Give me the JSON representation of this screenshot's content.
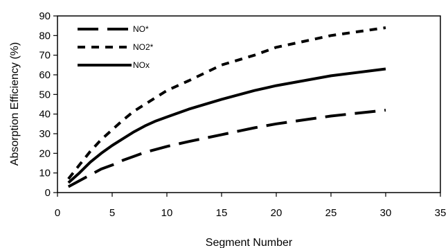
{
  "chart_data": {
    "type": "line",
    "title": "",
    "xlabel": "Segment Number",
    "ylabel": "Absorption Efficiency (%)",
    "xlim": [
      0,
      35
    ],
    "ylim": [
      0,
      90
    ],
    "xticks": [
      "0",
      "5",
      "10",
      "15",
      "20",
      "25",
      "30",
      "35"
    ],
    "yticks": [
      "0",
      "10",
      "20",
      "30",
      "40",
      "50",
      "60",
      "70",
      "80",
      "90"
    ],
    "grid": false,
    "legend_position": "top-left",
    "series": [
      {
        "name": "NO*",
        "style": "long-dash",
        "x": [
          1,
          2,
          3,
          4,
          5,
          6,
          7,
          8,
          9,
          10,
          12,
          15,
          18,
          20,
          25,
          30
        ],
        "y": [
          3,
          6,
          9,
          12,
          14,
          16.5,
          18.5,
          20.5,
          22,
          23.5,
          26,
          29.5,
          33,
          35,
          39,
          42
        ]
      },
      {
        "name": "NO2*",
        "style": "short-dash",
        "x": [
          1,
          2,
          3,
          4,
          5,
          6,
          7,
          8,
          9,
          10,
          12,
          15,
          18,
          20,
          25,
          30
        ],
        "y": [
          7,
          14,
          21,
          27,
          32,
          37,
          41.5,
          45,
          48.5,
          52,
          57,
          65,
          70,
          74,
          80,
          84
        ]
      },
      {
        "name": "NOx",
        "style": "solid",
        "x": [
          1,
          2,
          3,
          4,
          5,
          6,
          7,
          8,
          9,
          10,
          12,
          15,
          18,
          20,
          25,
          30
        ],
        "y": [
          5,
          10,
          15.5,
          20,
          24,
          27.5,
          31,
          34,
          36.5,
          38.5,
          42.5,
          47.5,
          52,
          54.5,
          59.5,
          63
        ]
      }
    ]
  },
  "colors": {
    "line": "#000000",
    "background": "#ffffff"
  }
}
